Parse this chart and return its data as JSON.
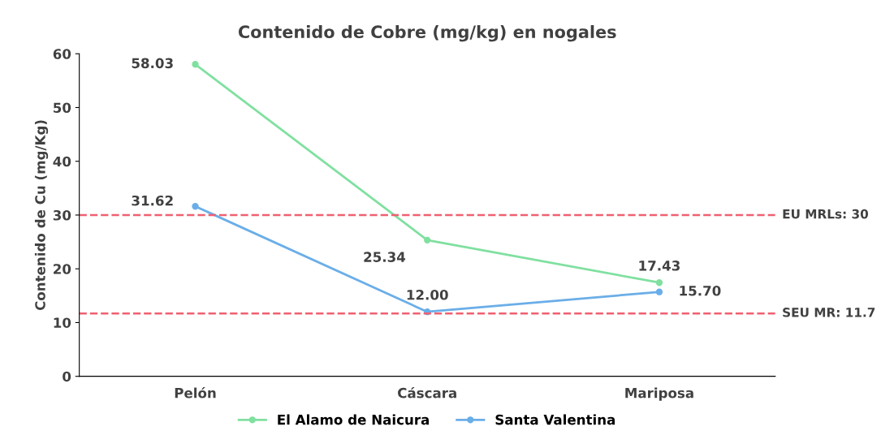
{
  "chart_data": {
    "type": "line",
    "title": "Contenido de Cobre (mg/kg) en nogales",
    "ylabel": "Contenido de Cu (mg/Kg)",
    "categories": [
      "Pelón",
      "Cáscara",
      "Mariposa"
    ],
    "series": [
      {
        "name": "El Alamo de Naicura",
        "color": "#80e0a0",
        "values": [
          58.03,
          25.34,
          17.43
        ],
        "value_labels": [
          "58.03",
          "25.34",
          "17.43"
        ]
      },
      {
        "name": "Santa Valentina",
        "color": "#6aaee8",
        "values": [
          31.62,
          12.0,
          15.7
        ],
        "value_labels": [
          "31.62",
          "12.00",
          "15.70"
        ]
      }
    ],
    "ylim": [
      0,
      60
    ],
    "yticks": [
      0,
      10,
      20,
      30,
      40,
      50,
      60
    ],
    "ref_lines": [
      {
        "axis": "y",
        "value": 30,
        "label": "EU MRLs: 30",
        "color": "#f06070",
        "line_style": "dashed"
      },
      {
        "axis": "y",
        "value": 11.7,
        "label": "SEU MR: 11.7",
        "color": "#f06070",
        "line_style": "dashed"
      }
    ],
    "grid": false,
    "legend": "bottom",
    "marker": "circle",
    "line_style": "solid"
  }
}
